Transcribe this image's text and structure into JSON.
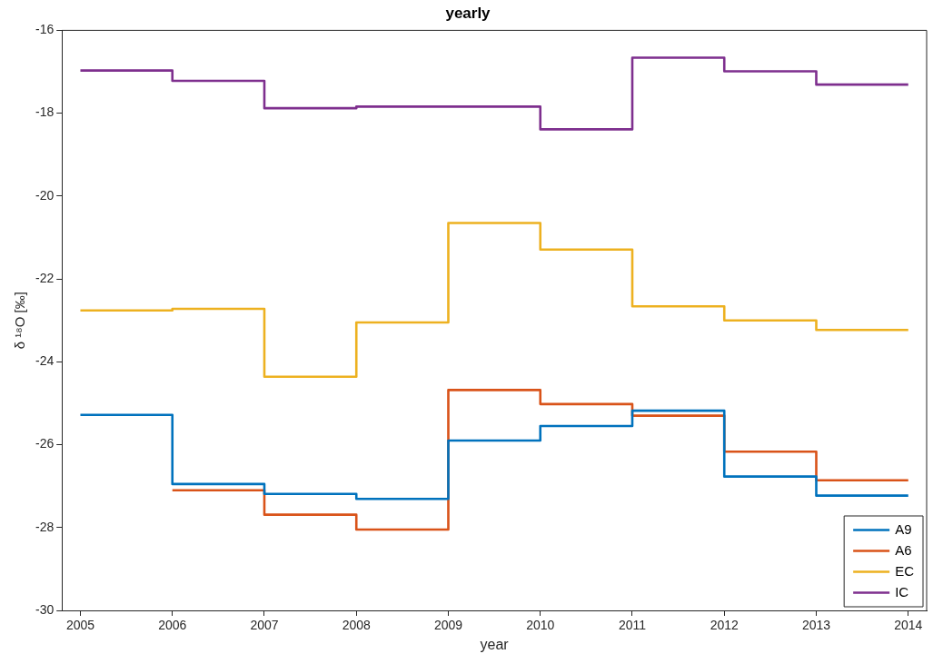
{
  "chart_data": {
    "type": "step",
    "title": "yearly",
    "xlabel": "year",
    "ylabel": "δ ¹⁸O [‰]",
    "x": [
      2005,
      2006,
      2007,
      2008,
      2009,
      2010,
      2011,
      2012,
      2013,
      2014
    ],
    "series": [
      {
        "name": "A9",
        "color": "#0072bd",
        "values": [
          -25.28,
          -26.95,
          -27.19,
          -27.31,
          -25.9,
          -25.55,
          -25.18,
          -26.77,
          -27.23,
          -27.23
        ]
      },
      {
        "name": "A6",
        "color": "#d95319",
        "values": [
          null,
          -27.1,
          -27.69,
          -28.05,
          -24.68,
          -25.02,
          -25.3,
          -26.17,
          -26.86,
          -26.86
        ]
      },
      {
        "name": "EC",
        "color": "#edb120",
        "values": [
          -22.76,
          -22.72,
          -24.36,
          -23.05,
          -20.65,
          -21.29,
          -22.66,
          -23.0,
          -23.23,
          -23.23
        ]
      },
      {
        "name": "IC",
        "color": "#7e2f8e",
        "values": [
          -16.97,
          -17.22,
          -17.88,
          -17.84,
          -17.84,
          -18.39,
          -16.66,
          -16.99,
          -17.31,
          -17.31
        ]
      }
    ],
    "xlim": [
      2004.8,
      2014.2
    ],
    "xticks": [
      2005,
      2006,
      2007,
      2008,
      2009,
      2010,
      2011,
      2012,
      2013,
      2014
    ],
    "ylim": [
      -30,
      -16
    ],
    "yticks": [
      -30,
      -28,
      -26,
      -24,
      -22,
      -20,
      -18,
      -16
    ],
    "grid": false,
    "legend": "bottom right",
    "marker": "none",
    "line_style": "solid"
  }
}
